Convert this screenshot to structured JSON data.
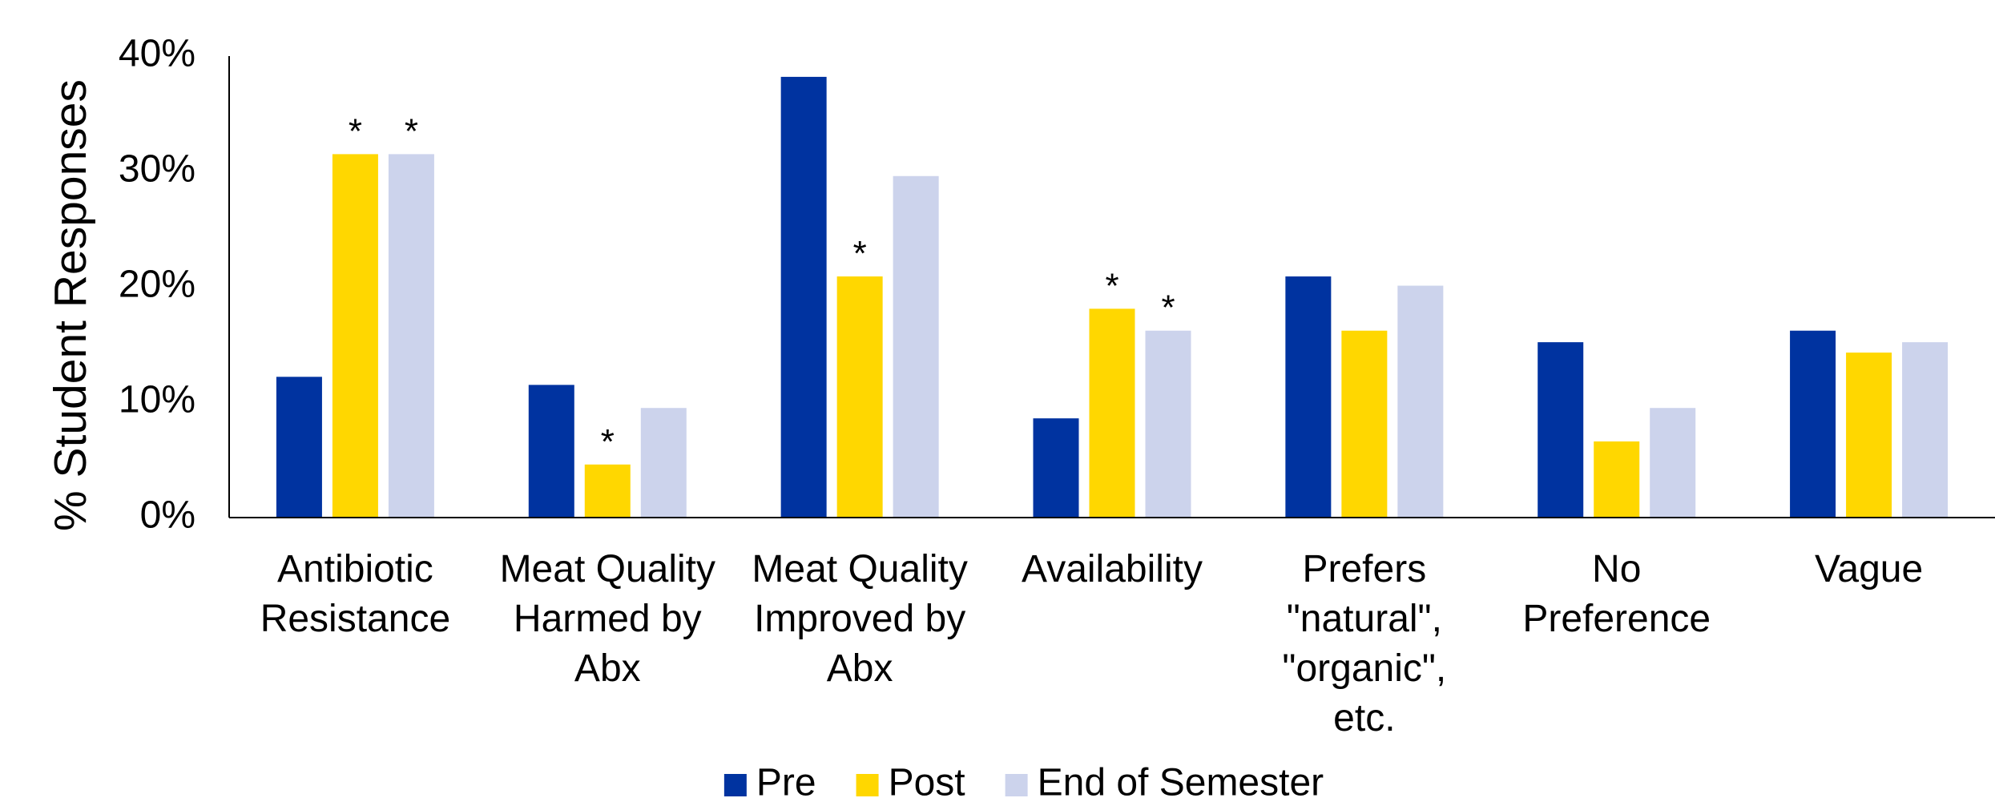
{
  "chart_data": {
    "type": "bar",
    "y_label": "% Student Responses",
    "categories": [
      "Antibiotic\nResistance",
      "Meat Quality\nHarmed by\nAbx",
      "Meat Quality\nImproved by\nAbx",
      "Availability",
      "Prefers\n\"natural\",\n\"organic\",\netc.",
      "No\nPreference",
      "Vague"
    ],
    "series": [
      {
        "name": "Pre",
        "color": "#0033a0",
        "values": [
          12.2,
          11.5,
          38.2,
          8.6,
          20.9,
          15.2,
          16.2
        ],
        "annotations": [
          null,
          null,
          null,
          null,
          null,
          null,
          null
        ]
      },
      {
        "name": "Post",
        "color": "#ffd700",
        "values": [
          31.5,
          4.6,
          20.9,
          18.1,
          16.2,
          6.6,
          14.3
        ],
        "annotations": [
          "*",
          "*",
          "*",
          "*",
          null,
          null,
          null
        ]
      },
      {
        "name": "End of Semester",
        "color": "#ccd3ec",
        "values": [
          31.5,
          9.5,
          29.6,
          16.2,
          20.1,
          9.5,
          15.2
        ],
        "annotations": [
          "*",
          null,
          null,
          "*",
          null,
          null,
          null
        ]
      }
    ],
    "ylim": [
      0,
      40
    ],
    "yticks": [
      {
        "value": 0,
        "label": "0%"
      },
      {
        "value": 10,
        "label": "10%"
      },
      {
        "value": 20,
        "label": "20%"
      },
      {
        "value": 30,
        "label": "30%"
      },
      {
        "value": 40,
        "label": "40%"
      }
    ],
    "grid": false,
    "legend": "bottom"
  }
}
